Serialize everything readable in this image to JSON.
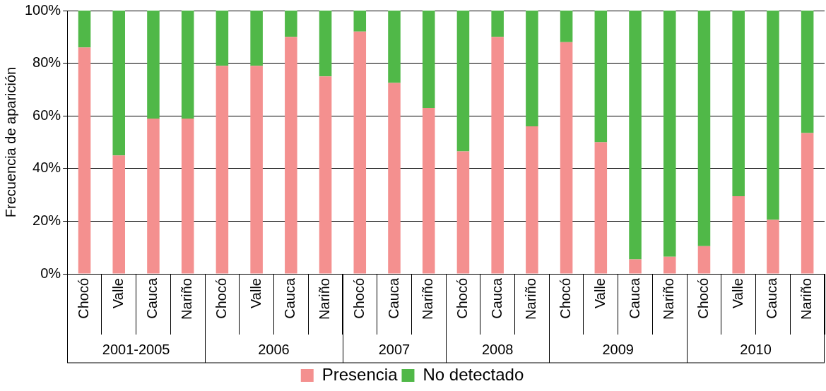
{
  "chart_data": {
    "type": "bar",
    "stacked": true,
    "ylabel": "Frecuencia de aparición",
    "categories": [
      "Chocó",
      "Valle",
      "Cauca",
      "Nariño",
      "Chocó",
      "Valle",
      "Cauca",
      "Nariño",
      "Chocó",
      "Cauca",
      "Nariño",
      "Chocó",
      "Cauca",
      "Nariño",
      "Chocó",
      "Valle",
      "Cauca",
      "Nariño",
      "Chocó",
      "Valle",
      "Cauca",
      "Nariño"
    ],
    "annotations": [
      "2001-2005",
      "2006",
      "2007",
      "2008",
      "2009",
      "2010"
    ],
    "series": [
      {
        "name": "Presencia",
        "color": "#f4908f",
        "values": [
          86,
          45,
          59,
          59,
          79,
          79,
          90,
          75,
          92,
          72.5,
          63,
          46.5,
          90,
          56,
          88,
          50,
          5.5,
          6.5,
          10.5,
          29.5,
          20.5,
          53.5
        ]
      },
      {
        "name": "No detectado",
        "color": "#50b848",
        "values": [
          14,
          55,
          41,
          41,
          21,
          21,
          10,
          25,
          8,
          27.5,
          37,
          53.5,
          10,
          44,
          12,
          50,
          94.5,
          93.5,
          89.5,
          70.5,
          79.5,
          46.5
        ]
      }
    ],
    "ylim": [
      0,
      100
    ],
    "yticks": [
      {
        "value": 0,
        "label": "0%"
      },
      {
        "value": 20,
        "label": "20%"
      },
      {
        "value": 40,
        "label": "40%"
      },
      {
        "value": 60,
        "label": "60%"
      },
      {
        "value": 80,
        "label": "80%"
      },
      {
        "value": 100,
        "label": "100%"
      }
    ],
    "grid": "y",
    "legend": "bottom"
  }
}
